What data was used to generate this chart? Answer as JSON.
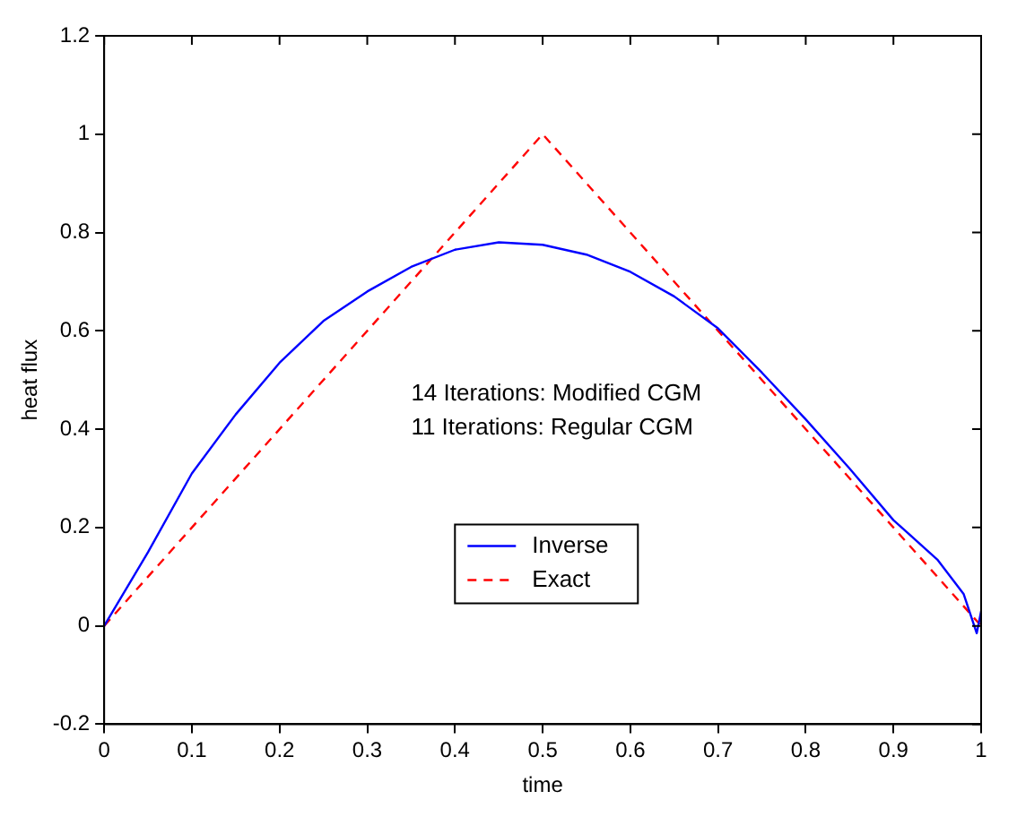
{
  "chart_data": {
    "type": "line",
    "xlabel": "time",
    "ylabel": "heat flux",
    "annotations": [
      "14 Iterations: Modified CGM",
      "11 Iterations: Regular CGM"
    ],
    "xlim": [
      0,
      1
    ],
    "xticks": [
      0,
      0.1,
      0.2,
      0.3,
      0.4,
      0.5,
      0.6,
      0.7,
      0.8,
      0.9,
      1
    ],
    "ylim": [
      -0.2,
      1.2
    ],
    "yticks": [
      -0.2,
      0,
      0.2,
      0.4,
      0.6,
      0.8,
      1,
      1.2
    ],
    "grid": false,
    "legend": "bottom",
    "marker": "none",
    "series": [
      {
        "name": "Inverse",
        "color": "#0000ff",
        "line_style": "solid",
        "x": [
          0,
          0.05,
          0.1,
          0.15,
          0.2,
          0.25,
          0.3,
          0.35,
          0.4,
          0.45,
          0.5,
          0.55,
          0.6,
          0.65,
          0.7,
          0.75,
          0.8,
          0.85,
          0.9,
          0.95,
          0.98,
          0.995,
          1
        ],
        "values": [
          0,
          0.15,
          0.31,
          0.43,
          0.535,
          0.62,
          0.68,
          0.73,
          0.765,
          0.78,
          0.775,
          0.755,
          0.72,
          0.67,
          0.605,
          0.515,
          0.42,
          0.32,
          0.215,
          0.135,
          0.065,
          -0.015,
          0.03
        ]
      },
      {
        "name": "Exact",
        "color": "#ff0000",
        "line_style": "dashed",
        "x": [
          0,
          0.5,
          1
        ],
        "values": [
          0,
          1,
          0
        ]
      }
    ]
  }
}
